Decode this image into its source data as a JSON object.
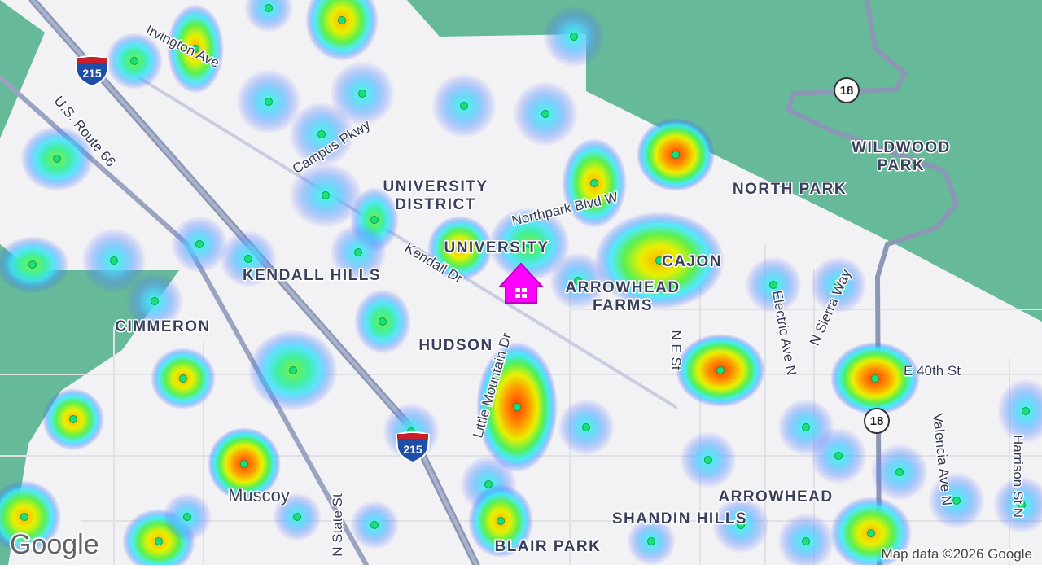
{
  "map": {
    "places": [
      {
        "lines": [
          "WILDWOOD",
          "PARK"
        ]
      },
      {
        "lines": [
          "NORTH PARK"
        ]
      },
      {
        "lines": [
          "UNIVERSITY",
          "DISTRICT"
        ]
      },
      {
        "lines": [
          "UNIVERSITY"
        ]
      },
      {
        "lines": [
          "KENDALL HILLS"
        ]
      },
      {
        "lines": [
          "CAJON"
        ]
      },
      {
        "lines": [
          "ARROWHEAD",
          "FARMS"
        ]
      },
      {
        "lines": [
          "CIMMERON"
        ]
      },
      {
        "lines": [
          "HUDSON"
        ]
      },
      {
        "lines": [
          "Muscoy"
        ]
      },
      {
        "lines": [
          "ARROWHEAD"
        ]
      },
      {
        "lines": [
          "SHANDIN HILLS"
        ]
      },
      {
        "lines": [
          "BLAIR PARK"
        ]
      }
    ],
    "roads": [
      "Irvington Ave",
      "U.S. Route 66",
      "Campus Pkwy",
      "Northpark Blvd W",
      "Kendall Dr",
      "Little Mountain Dr",
      "N E St",
      "Electric Ave N",
      "N Sierra Way",
      "E 40th St",
      "Valencia Ave N",
      "Harrison St N",
      "N State St"
    ],
    "shields": [
      "215",
      "215",
      "18",
      "18"
    ],
    "logo": "Google",
    "attribution": "Map data ©2026 Google"
  }
}
